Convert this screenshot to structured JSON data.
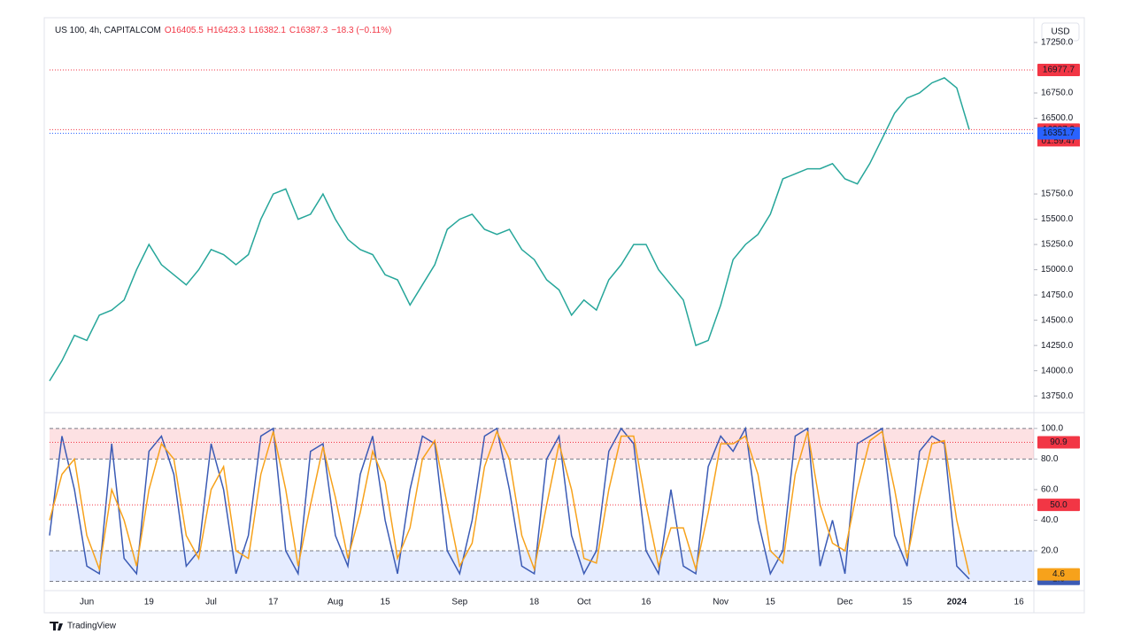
{
  "chart_data": [
    {
      "type": "line",
      "title": "US 100, 4h, CAPITALCOM",
      "ohlc_labels": [
        "O16405.5",
        "H16423.3",
        "L16382.1",
        "C16387.3",
        "−18.3 (−0.11%)"
      ],
      "currency": "USD",
      "brand": "TradingView",
      "color": "#26a69a",
      "categories": [
        null,
        null,
        null,
        "Jun",
        null,
        null,
        null,
        null,
        "19",
        null,
        null,
        null,
        null,
        "Jul",
        null,
        null,
        null,
        null,
        "17",
        null,
        null,
        null,
        null,
        "Aug",
        null,
        null,
        null,
        "15",
        null,
        null,
        null,
        null,
        null,
        "Sep",
        null,
        null,
        null,
        null,
        null,
        "18",
        null,
        null,
        null,
        "Oct",
        null,
        null,
        null,
        null,
        "16",
        null,
        null,
        null,
        null,
        null,
        "Nov",
        null,
        null,
        null,
        "15",
        null,
        null,
        null,
        null,
        null,
        "Dec",
        null,
        null,
        null,
        null,
        "15",
        null,
        null,
        null,
        "2024",
        null,
        null,
        null,
        null,
        "16",
        null
      ],
      "values": [
        13900,
        14100,
        14350,
        14300,
        14550,
        14600,
        14700,
        15000,
        15250,
        15050,
        14950,
        14850,
        15000,
        15200,
        15150,
        15050,
        15150,
        15500,
        15750,
        15800,
        15500,
        15550,
        15750,
        15500,
        15300,
        15200,
        15150,
        14950,
        14900,
        14650,
        14850,
        15050,
        15400,
        15500,
        15550,
        15400,
        15350,
        15400,
        15200,
        15100,
        14900,
        14800,
        14550,
        14700,
        14600,
        14900,
        15050,
        15250,
        15250,
        15000,
        14850,
        14700,
        14250,
        14300,
        14650,
        15100,
        15250,
        15350,
        15550,
        15900,
        15950,
        16000,
        16000,
        16050,
        15900,
        15850,
        16050,
        16300,
        16550,
        16700,
        16750,
        16850,
        16900,
        16800,
        16387.3,
        null,
        null,
        null,
        null,
        null
      ],
      "ylim": [
        13620,
        17320
      ],
      "yticks": [
        {
          "value": 13750,
          "label": "13750.0"
        },
        {
          "value": 14000,
          "label": "14000.0"
        },
        {
          "value": 14250,
          "label": "14250.0"
        },
        {
          "value": 14500,
          "label": "14500.0"
        },
        {
          "value": 14750,
          "label": "14750.0"
        },
        {
          "value": 15000,
          "label": "15000.0"
        },
        {
          "value": 15250,
          "label": "15250.0"
        },
        {
          "value": 15500,
          "label": "15500.0"
        },
        {
          "value": 15750,
          "label": "15750.0"
        },
        {
          "value": 16500,
          "label": "16500.0"
        },
        {
          "value": 16750,
          "label": "16750.0"
        },
        {
          "value": 17250,
          "label": "17250.0"
        }
      ],
      "levels": [
        {
          "value": 16977.7,
          "color": "#f23645"
        },
        {
          "value": 16387.3,
          "color": "#f23645",
          "countdown": "01:59:47"
        },
        {
          "value": 16351.7,
          "color": "#2962ff"
        }
      ]
    },
    {
      "type": "line",
      "series": [
        {
          "color": "#3b5bb5",
          "values": [
            30,
            95,
            60,
            10,
            5,
            90,
            15,
            5,
            85,
            95,
            70,
            10,
            20,
            90,
            60,
            5,
            30,
            95,
            100,
            20,
            5,
            85,
            90,
            30,
            10,
            70,
            95,
            40,
            5,
            60,
            95,
            90,
            20,
            5,
            40,
            95,
            100,
            60,
            10,
            5,
            80,
            95,
            30,
            5,
            20,
            85,
            100,
            90,
            20,
            5,
            60,
            10,
            5,
            75,
            95,
            85,
            100,
            40,
            5,
            20,
            95,
            100,
            10,
            40,
            5,
            90,
            95,
            100,
            30,
            10,
            85,
            95,
            90,
            10,
            1.6,
            null,
            null,
            null,
            null,
            null
          ]
        },
        {
          "color": "#f7a21b",
          "values": [
            40,
            70,
            80,
            30,
            8,
            60,
            40,
            10,
            60,
            90,
            80,
            30,
            15,
            60,
            75,
            20,
            15,
            70,
            98,
            60,
            10,
            50,
            88,
            55,
            15,
            45,
            85,
            65,
            15,
            35,
            80,
            92,
            50,
            10,
            25,
            75,
            98,
            80,
            30,
            8,
            50,
            90,
            60,
            15,
            12,
            60,
            95,
            95,
            50,
            10,
            35,
            35,
            8,
            45,
            90,
            90,
            95,
            70,
            20,
            12,
            70,
            98,
            50,
            25,
            20,
            60,
            92,
            98,
            60,
            15,
            55,
            90,
            92,
            40,
            4.6,
            null,
            null,
            null,
            null,
            null
          ]
        }
      ],
      "ylim": [
        -2,
        108
      ],
      "yticks": [
        {
          "value": 20,
          "label": "20.0"
        },
        {
          "value": 40,
          "label": "40.0"
        },
        {
          "value": 60,
          "label": "60.0"
        },
        {
          "value": 80,
          "label": "80.0"
        },
        {
          "value": 100,
          "label": "100.0"
        }
      ],
      "overbought": [
        80,
        100
      ],
      "oversold": [
        0,
        20
      ],
      "levels": [
        {
          "value": 90.9,
          "color": "#f23645",
          "label": "90.9"
        },
        {
          "value": 50,
          "color": "#f23645",
          "label": "50.0"
        }
      ]
    }
  ]
}
